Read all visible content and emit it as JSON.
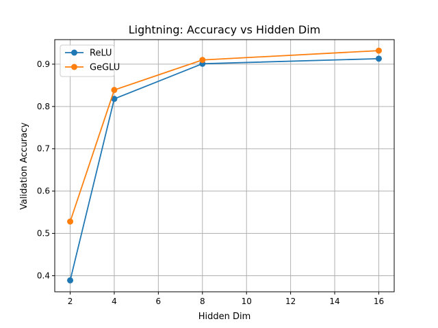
{
  "chart_data": {
    "type": "line",
    "title": "Lightning: Accuracy vs Hidden Dim",
    "xlabel": "Hidden Dim",
    "ylabel": "Validation Accuracy",
    "xlim": [
      1.3,
      16.7
    ],
    "ylim": [
      0.362,
      0.958
    ],
    "xticks": [
      2,
      4,
      6,
      8,
      10,
      12,
      14,
      16
    ],
    "yticks": [
      0.4,
      0.5,
      0.6,
      0.7,
      0.8,
      0.9
    ],
    "ytick_labels": [
      "0.4",
      "0.5",
      "0.6",
      "0.7",
      "0.8",
      "0.9"
    ],
    "grid": true,
    "legend_position": "upper-left",
    "x": [
      2,
      4,
      8,
      16
    ],
    "series": [
      {
        "name": "ReLU",
        "values": [
          0.389,
          0.818,
          0.901,
          0.913
        ],
        "color": "#1f77b4",
        "marker": "circle"
      },
      {
        "name": "GeGLU",
        "values": [
          0.528,
          0.839,
          0.91,
          0.932
        ],
        "color": "#ff7f0e",
        "marker": "circle"
      }
    ]
  }
}
